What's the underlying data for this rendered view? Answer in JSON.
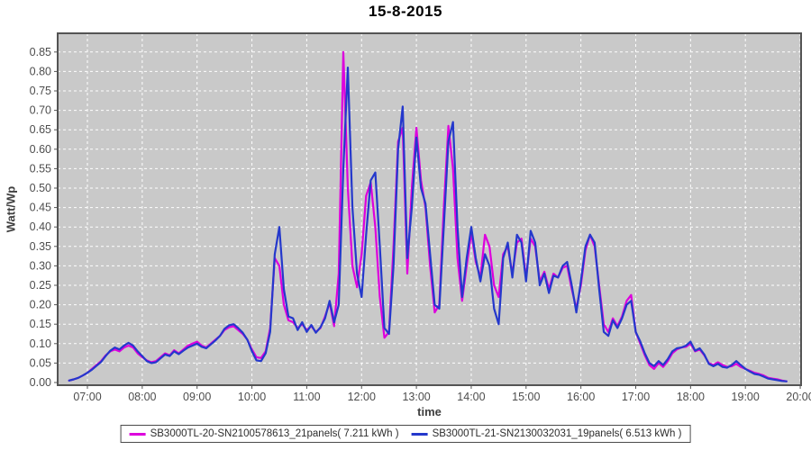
{
  "title": "15-8-2015",
  "colors": {
    "page_bg": "#FFFFFF",
    "plot_bg": "#C9C9C9",
    "grid": "#FFFFFF",
    "plot_border": "#545454",
    "tick_text": "#4D4D4D",
    "axis_label_text": "#3F3F3F",
    "series_magenta": "#DD00DD",
    "series_blue": "#2438CC"
  },
  "chart_data": {
    "type": "line",
    "title": "15-8-2015",
    "xlabel": "time",
    "ylabel": "Watt/Wp",
    "grid": true,
    "legend_position": "bottom",
    "plot_background": "gray",
    "x_ticks": [
      "07:00",
      "08:00",
      "09:00",
      "10:00",
      "11:00",
      "12:00",
      "13:00",
      "14:00",
      "15:00",
      "16:00",
      "17:00",
      "18:00",
      "19:00",
      "20:00"
    ],
    "y_ticks": [
      0.0,
      0.05,
      0.1,
      0.15,
      0.2,
      0.25,
      0.3,
      0.35,
      0.4,
      0.45,
      0.5,
      0.55,
      0.6,
      0.65,
      0.7,
      0.75,
      0.8,
      0.85
    ],
    "ylim": [
      0,
      0.9
    ],
    "xlim_hours": [
      6.45,
      20.03
    ],
    "x_start_hour": 6.6667,
    "x_step_hours": 0.083333,
    "x_step_note": "values sampled every 5 minutes from 06:40 to 19:45",
    "series": [
      {
        "name": "SB3000TL-20-SN2100578613_21panels( 7.211 kWh )",
        "color": "#DD00DD",
        "energy_kwh": 7.211,
        "values": [
          0.005,
          0.008,
          0.012,
          0.018,
          0.025,
          0.035,
          0.045,
          0.055,
          0.07,
          0.08,
          0.085,
          0.08,
          0.09,
          0.095,
          0.09,
          0.075,
          0.065,
          0.057,
          0.052,
          0.055,
          0.065,
          0.075,
          0.07,
          0.083,
          0.075,
          0.085,
          0.095,
          0.1,
          0.105,
          0.095,
          0.09,
          0.1,
          0.11,
          0.12,
          0.135,
          0.142,
          0.145,
          0.135,
          0.125,
          0.11,
          0.085,
          0.065,
          0.063,
          0.08,
          0.14,
          0.32,
          0.3,
          0.2,
          0.16,
          0.155,
          0.14,
          0.15,
          0.135,
          0.145,
          0.13,
          0.14,
          0.17,
          0.205,
          0.145,
          0.28,
          0.85,
          0.5,
          0.3,
          0.245,
          0.33,
          0.48,
          0.515,
          0.4,
          0.22,
          0.115,
          0.13,
          0.35,
          0.62,
          0.655,
          0.28,
          0.5,
          0.655,
          0.52,
          0.45,
          0.3,
          0.18,
          0.2,
          0.45,
          0.66,
          0.55,
          0.32,
          0.21,
          0.3,
          0.385,
          0.31,
          0.27,
          0.38,
          0.35,
          0.25,
          0.22,
          0.33,
          0.35,
          0.28,
          0.36,
          0.37,
          0.27,
          0.37,
          0.35,
          0.26,
          0.285,
          0.24,
          0.28,
          0.27,
          0.295,
          0.3,
          0.24,
          0.19,
          0.25,
          0.34,
          0.38,
          0.35,
          0.25,
          0.15,
          0.13,
          0.165,
          0.145,
          0.17,
          0.21,
          0.225,
          0.13,
          0.1,
          0.07,
          0.045,
          0.035,
          0.05,
          0.04,
          0.055,
          0.075,
          0.085,
          0.09,
          0.092,
          0.1,
          0.08,
          0.085,
          0.07,
          0.05,
          0.045,
          0.052,
          0.045,
          0.04,
          0.042,
          0.048,
          0.04,
          0.035,
          0.03,
          0.025,
          0.022,
          0.018,
          0.012,
          0.01,
          0.008,
          0.005,
          0.003
        ]
      },
      {
        "name": "SB3000TL-21-SN2130032031_19panels( 6.513 kWh )",
        "color": "#2438CC",
        "energy_kwh": 6.513,
        "values": [
          0.005,
          0.008,
          0.012,
          0.018,
          0.025,
          0.033,
          0.043,
          0.053,
          0.068,
          0.082,
          0.09,
          0.085,
          0.095,
          0.102,
          0.095,
          0.08,
          0.068,
          0.055,
          0.05,
          0.052,
          0.062,
          0.072,
          0.068,
          0.08,
          0.073,
          0.082,
          0.09,
          0.095,
          0.1,
          0.092,
          0.088,
          0.098,
          0.108,
          0.12,
          0.138,
          0.147,
          0.15,
          0.14,
          0.128,
          0.11,
          0.08,
          0.057,
          0.055,
          0.075,
          0.13,
          0.33,
          0.4,
          0.24,
          0.17,
          0.165,
          0.135,
          0.155,
          0.13,
          0.148,
          0.128,
          0.142,
          0.165,
          0.21,
          0.155,
          0.2,
          0.55,
          0.81,
          0.45,
          0.28,
          0.22,
          0.38,
          0.52,
          0.54,
          0.35,
          0.14,
          0.125,
          0.3,
          0.6,
          0.71,
          0.32,
          0.45,
          0.63,
          0.5,
          0.46,
          0.33,
          0.2,
          0.19,
          0.4,
          0.62,
          0.67,
          0.4,
          0.22,
          0.32,
          0.4,
          0.32,
          0.26,
          0.33,
          0.3,
          0.19,
          0.15,
          0.32,
          0.36,
          0.27,
          0.38,
          0.36,
          0.26,
          0.39,
          0.36,
          0.25,
          0.28,
          0.23,
          0.275,
          0.27,
          0.3,
          0.31,
          0.25,
          0.18,
          0.26,
          0.35,
          0.38,
          0.36,
          0.24,
          0.13,
          0.12,
          0.16,
          0.14,
          0.165,
          0.2,
          0.21,
          0.13,
          0.105,
          0.075,
          0.05,
          0.042,
          0.055,
          0.045,
          0.06,
          0.08,
          0.088,
          0.09,
          0.095,
          0.105,
          0.082,
          0.088,
          0.072,
          0.048,
          0.042,
          0.048,
          0.04,
          0.038,
          0.045,
          0.055,
          0.045,
          0.035,
          0.028,
          0.022,
          0.02,
          0.015,
          0.01,
          0.008,
          0.006,
          0.004,
          0.003
        ]
      }
    ]
  }
}
